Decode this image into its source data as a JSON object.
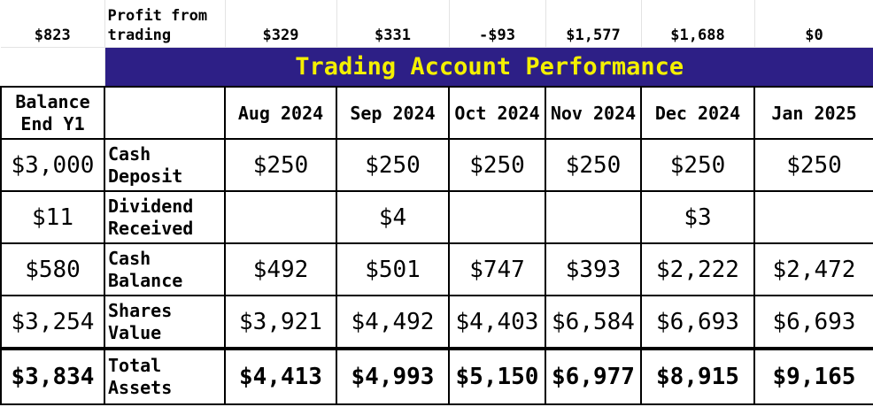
{
  "top_row": {
    "first_value": "$823",
    "label": "Profit from trading",
    "values": [
      "$329",
      "$331",
      "-$93",
      "$1,577",
      "$1,688",
      "$0"
    ]
  },
  "title": "Trading Account Performance",
  "header": {
    "balance_col": "Balance End Y1",
    "label_col": "",
    "months": [
      "Aug 2024",
      "Sep 2024",
      "Oct 2024",
      "Nov 2024",
      "Dec 2024",
      "Jan 2025"
    ]
  },
  "rows": [
    {
      "label": "Cash Deposit",
      "balance": "$3,000",
      "values": [
        "$250",
        "$250",
        "$250",
        "$250",
        "$250",
        "$250"
      ]
    },
    {
      "label": "Dividend Received",
      "balance": "$11",
      "values": [
        "",
        "$4",
        "",
        "",
        "$3",
        ""
      ]
    },
    {
      "label": "Cash Balance",
      "balance": "$580",
      "values": [
        "$492",
        "$501",
        "$747",
        "$393",
        "$2,222",
        "$2,472"
      ]
    },
    {
      "label": "Shares Value",
      "balance": "$3,254",
      "values": [
        "$3,921",
        "$4,492",
        "$4,403",
        "$6,584",
        "$6,693",
        "$6,693"
      ]
    }
  ],
  "total": {
    "label": "Total Assets",
    "balance": "$3,834",
    "values": [
      "$4,413",
      "$4,993",
      "$5,150",
      "$6,977",
      "$8,915",
      "$9,165"
    ]
  },
  "colors": {
    "title_background": "#2d1f86",
    "title_text": "#f4f000",
    "grid": "#000000"
  }
}
